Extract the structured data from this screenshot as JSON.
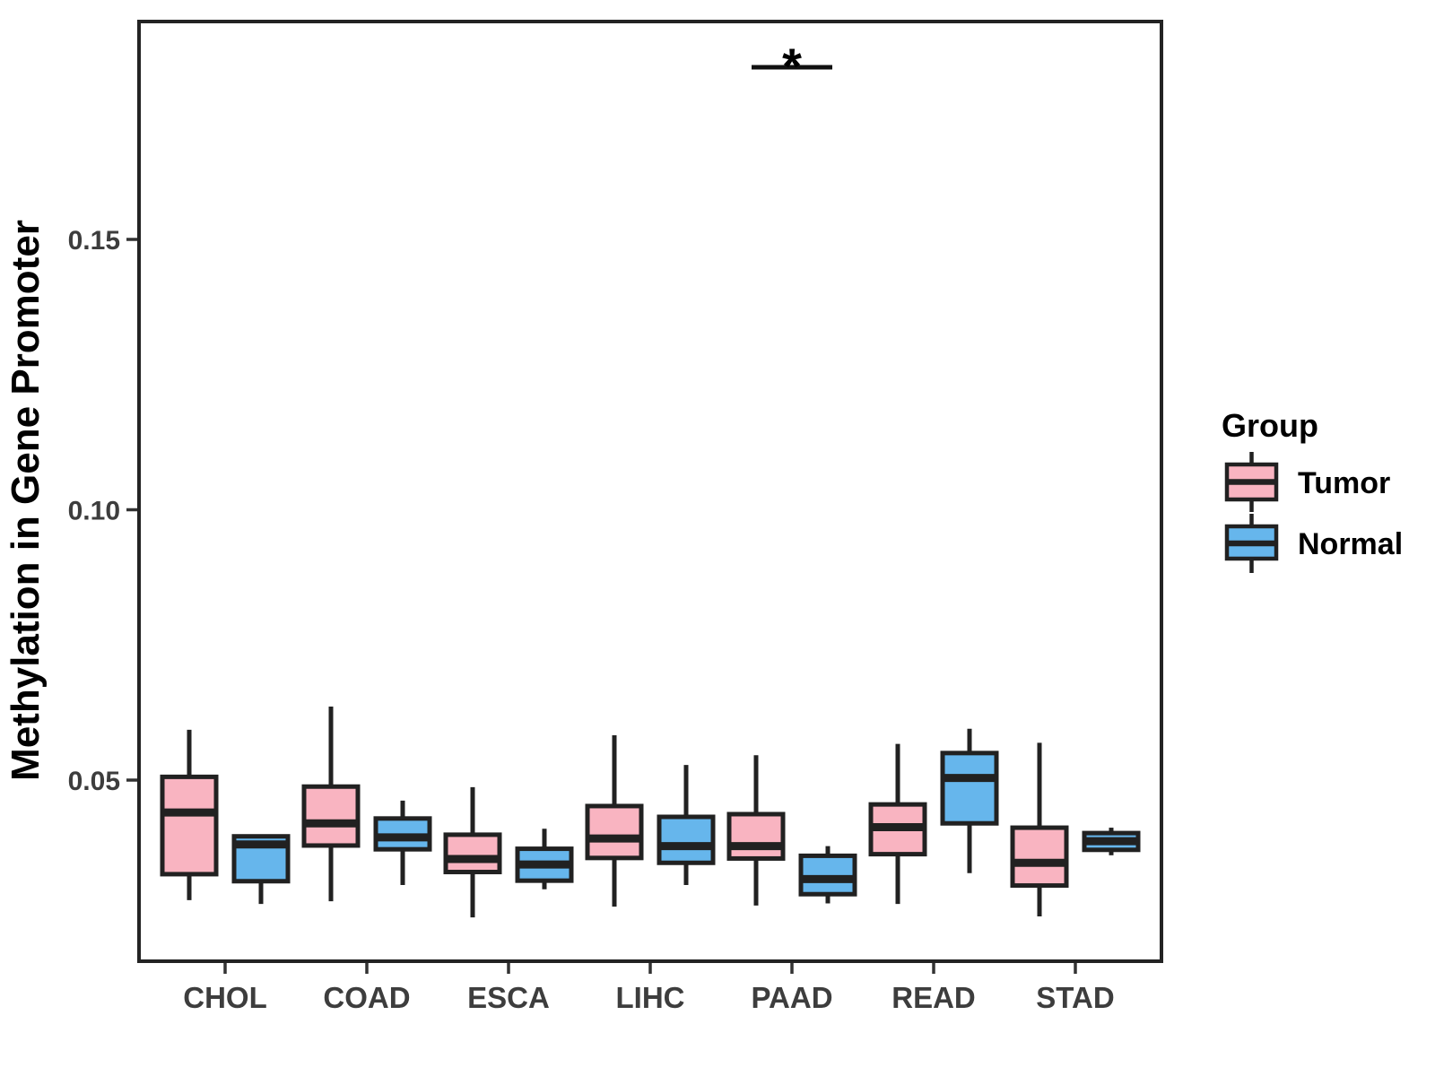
{
  "figure": {
    "background": "#ffffff",
    "panel_border_color": "#232323",
    "ink_color": "#212121",
    "axis_text_color": "#3d3d3d",
    "axis_title_color": "#000000"
  },
  "chart_data": {
    "type": "boxplot",
    "title": "",
    "xlabel": "",
    "ylabel": "Methylation in Gene Promoter",
    "categories": [
      "CHOL",
      "COAD",
      "ESCA",
      "LIHC",
      "PAAD",
      "READ",
      "STAD"
    ],
    "yticks": {
      "values": [
        0.05,
        0.1,
        0.15
      ],
      "labels": [
        "0.05",
        "0.10",
        "0.15"
      ]
    },
    "ylim": [
      0.0165,
      0.1905
    ],
    "grid": false,
    "legend": {
      "title": "Group",
      "position": "right",
      "entries": [
        {
          "label": "Tumor",
          "color": "#F9B4C1"
        },
        {
          "label": "Normal",
          "color": "#66B6EC"
        }
      ]
    },
    "series": [
      {
        "name": "Tumor",
        "color": "#F9B4C1",
        "boxes": [
          {
            "category": "CHOL",
            "whisker_low": 0.0278,
            "q1": 0.0326,
            "median": 0.044,
            "q3": 0.0506,
            "whisker_high": 0.0593
          },
          {
            "category": "COAD",
            "whisker_low": 0.0276,
            "q1": 0.0379,
            "median": 0.042,
            "q3": 0.0488,
            "whisker_high": 0.0636
          },
          {
            "category": "ESCA",
            "whisker_low": 0.0246,
            "q1": 0.033,
            "median": 0.0354,
            "q3": 0.0399,
            "whisker_high": 0.0487
          },
          {
            "category": "LIHC",
            "whisker_low": 0.0266,
            "q1": 0.0356,
            "median": 0.0392,
            "q3": 0.0452,
            "whisker_high": 0.0583
          },
          {
            "category": "PAAD",
            "whisker_low": 0.0268,
            "q1": 0.0355,
            "median": 0.0378,
            "q3": 0.0437,
            "whisker_high": 0.0546
          },
          {
            "category": "READ",
            "whisker_low": 0.0271,
            "q1": 0.0363,
            "median": 0.0413,
            "q3": 0.0455,
            "whisker_high": 0.0567
          },
          {
            "category": "STAD",
            "whisker_low": 0.0248,
            "q1": 0.0305,
            "median": 0.0347,
            "q3": 0.0412,
            "whisker_high": 0.0569
          }
        ]
      },
      {
        "name": "Normal",
        "color": "#66B6EC",
        "boxes": [
          {
            "category": "CHOL",
            "whisker_low": 0.0271,
            "q1": 0.0313,
            "median": 0.0381,
            "q3": 0.0396,
            "whisker_high": 0.0398
          },
          {
            "category": "COAD",
            "whisker_low": 0.0306,
            "q1": 0.0372,
            "median": 0.0394,
            "q3": 0.0429,
            "whisker_high": 0.0462
          },
          {
            "category": "ESCA",
            "whisker_low": 0.0298,
            "q1": 0.0314,
            "median": 0.0344,
            "q3": 0.0373,
            "whisker_high": 0.041
          },
          {
            "category": "LIHC",
            "whisker_low": 0.0306,
            "q1": 0.0347,
            "median": 0.0378,
            "q3": 0.0432,
            "whisker_high": 0.0528
          },
          {
            "category": "PAAD",
            "whisker_low": 0.0272,
            "q1": 0.0289,
            "median": 0.0317,
            "q3": 0.036,
            "whisker_high": 0.0378
          },
          {
            "category": "READ",
            "whisker_low": 0.0328,
            "q1": 0.042,
            "median": 0.0504,
            "q3": 0.055,
            "whisker_high": 0.0595
          },
          {
            "category": "STAD",
            "whisker_low": 0.0361,
            "q1": 0.0371,
            "median": 0.0387,
            "q3": 0.0402,
            "whisker_high": 0.0412
          }
        ]
      }
    ],
    "annotations": [
      {
        "type": "significance-bar",
        "category": "PAAD",
        "label": "*"
      }
    ]
  }
}
